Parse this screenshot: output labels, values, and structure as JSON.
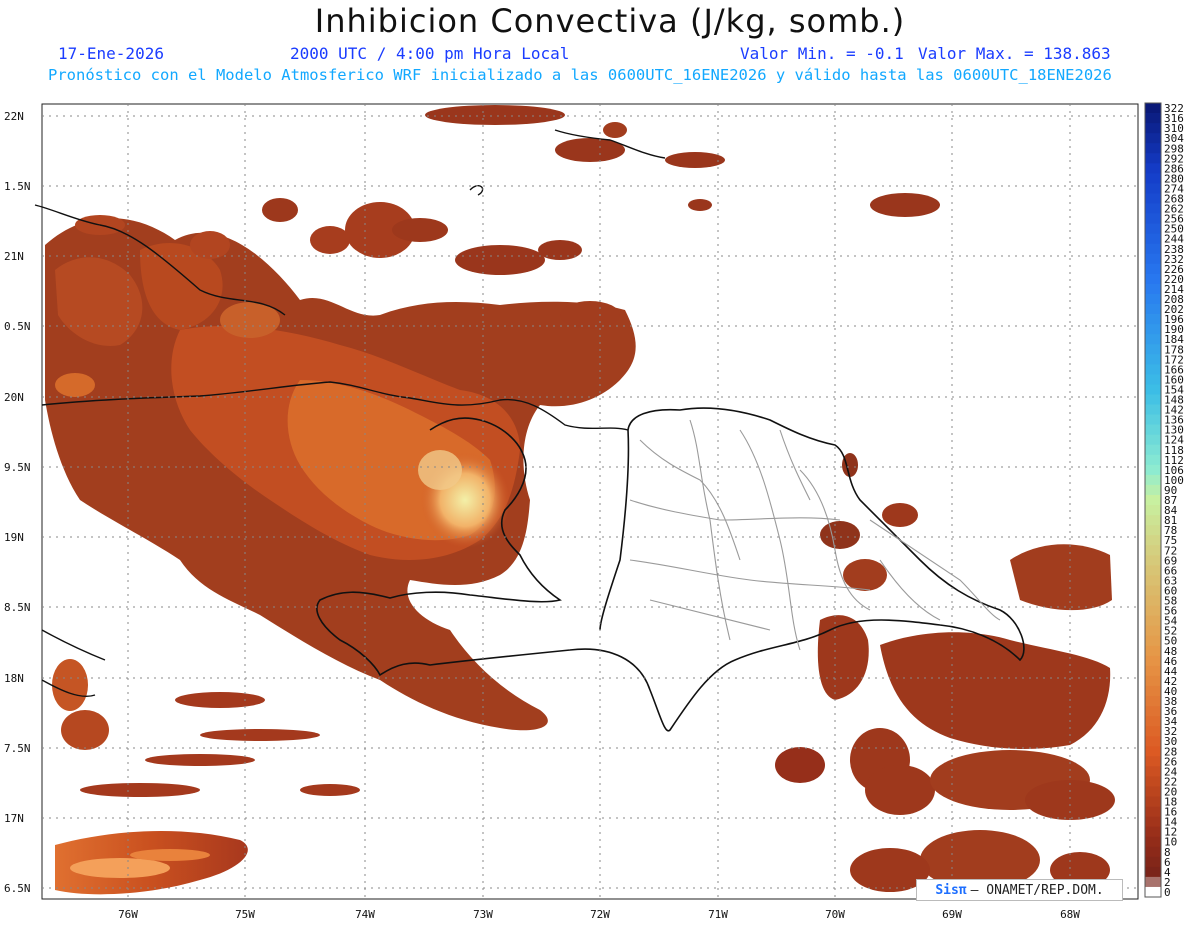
{
  "header": {
    "title": "Inhibicion Convectiva (J/kg, somb.)",
    "date": "17-Ene-2026",
    "time": "2000 UTC / 4:00 pm Hora Local",
    "min_label": "Valor Min. = -0.1",
    "max_label": "Valor Max. = 138.863",
    "model_info": "Pronóstico con el Modelo Atmosferico WRF inicializado a las 0600UTC_16ENE2026 y válido hasta las  0600UTC_18ENE2026"
  },
  "map": {
    "lat_labels": [
      "22N",
      "1.5N",
      "21N",
      "0.5N",
      "20N",
      "9.5N",
      "19N",
      "8.5N",
      "18N",
      "7.5N",
      "17N",
      "6.5N"
    ],
    "lon_labels": [
      "76W",
      "75W",
      "74W",
      "73W",
      "72W",
      "71W",
      "70W",
      "69W",
      "68W"
    ],
    "lat_range": [
      16.5,
      22.0
    ],
    "lon_range": [
      -76.8,
      -67.6
    ],
    "grid": true,
    "shading_colormap": "white to brown (0-2) through orange (40) to yellow-green (100) to cyan/blue (322)"
  },
  "legend": {
    "labels": [
      "322",
      "316",
      "310",
      "304",
      "298",
      "292",
      "286",
      "280",
      "274",
      "268",
      "262",
      "256",
      "250",
      "244",
      "238",
      "232",
      "226",
      "220",
      "214",
      "208",
      "202",
      "196",
      "190",
      "184",
      "178",
      "172",
      "166",
      "160",
      "154",
      "148",
      "142",
      "136",
      "130",
      "124",
      "118",
      "112",
      "106",
      "100",
      "90",
      "87",
      "84",
      "81",
      "78",
      "75",
      "72",
      "69",
      "66",
      "63",
      "60",
      "58",
      "56",
      "54",
      "52",
      "50",
      "48",
      "46",
      "44",
      "42",
      "40",
      "38",
      "36",
      "34",
      "32",
      "30",
      "28",
      "26",
      "24",
      "22",
      "20",
      "18",
      "16",
      "14",
      "12",
      "10",
      "8",
      "6",
      "4",
      "2",
      "0"
    ]
  },
  "credit": {
    "logo": "Sisπ",
    "text": "– ONAMET/REP.DOM."
  },
  "colors": {
    "title": "#111111",
    "date_line": "#1a3cff",
    "info_line": "#12a8ff",
    "cin_low": "#8b2a1a",
    "cin_mid": "#d0501c",
    "cin_high": "#f6e7a3"
  }
}
